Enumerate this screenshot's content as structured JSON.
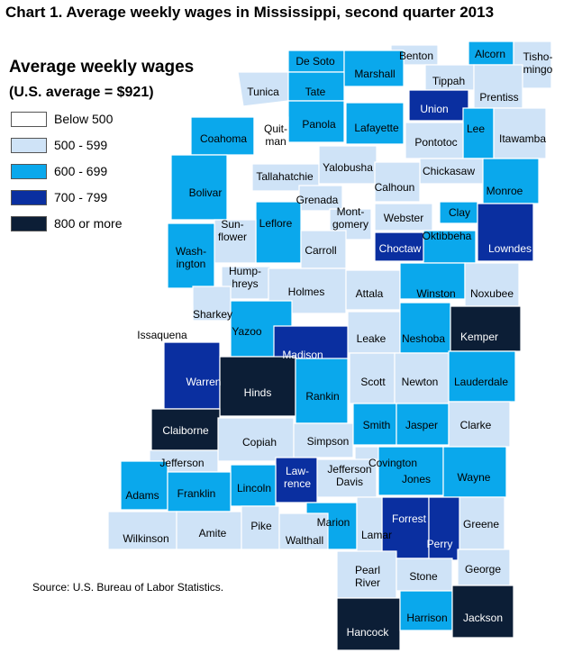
{
  "title": "Chart 1. Average weekly wages in Mississippi, second quarter 2013",
  "legend": {
    "title": "Average weekly wages",
    "subtitle": "(U.S. average = $921)",
    "items": [
      {
        "label": "Below 500",
        "color": "#ffffff"
      },
      {
        "label": "500 - 599",
        "color": "#cfe3f7"
      },
      {
        "label": "600 - 699",
        "color": "#0aa8ec"
      },
      {
        "label": "700 - 799",
        "color": "#0a2fa0"
      },
      {
        "label": "800 or more",
        "color": "#0c1e36"
      }
    ]
  },
  "source": "Source: U.S. Bureau of Labor Statistics.",
  "counties": [
    {
      "name": "De Soto",
      "category": 2
    },
    {
      "name": "Benton",
      "category": 1
    },
    {
      "name": "Alcorn",
      "category": 2
    },
    {
      "name": "Tisho-\nmingo",
      "category": 1
    },
    {
      "name": "Marshall",
      "category": 2
    },
    {
      "name": "Tippah",
      "category": 1
    },
    {
      "name": "Tunica",
      "category": 1
    },
    {
      "name": "Tate",
      "category": 2
    },
    {
      "name": "Prentiss",
      "category": 1
    },
    {
      "name": "Union",
      "category": 3
    },
    {
      "name": "Panola",
      "category": 2
    },
    {
      "name": "Lafayette",
      "category": 2
    },
    {
      "name": "Lee",
      "category": 2
    },
    {
      "name": "Itawamba",
      "category": 1
    },
    {
      "name": "Coahoma",
      "category": 2
    },
    {
      "name": "Quit-\nman",
      "category": 0
    },
    {
      "name": "Pontotoc",
      "category": 1
    },
    {
      "name": "Tallahatchie",
      "category": 1
    },
    {
      "name": "Yalobusha",
      "category": 1
    },
    {
      "name": "Chickasaw",
      "category": 1
    },
    {
      "name": "Bolivar",
      "category": 2
    },
    {
      "name": "Calhoun",
      "category": 1
    },
    {
      "name": "Monroe",
      "category": 2
    },
    {
      "name": "Grenada",
      "category": 1
    },
    {
      "name": "Clay",
      "category": 2
    },
    {
      "name": "Leflore",
      "category": 2
    },
    {
      "name": "Mont-\ngomery",
      "category": 1
    },
    {
      "name": "Webster",
      "category": 1
    },
    {
      "name": "Sun-\nflower",
      "category": 1
    },
    {
      "name": "Oktibbeha",
      "category": 2
    },
    {
      "name": "Carroll",
      "category": 1
    },
    {
      "name": "Choctaw",
      "category": 3
    },
    {
      "name": "Lowndes",
      "category": 3
    },
    {
      "name": "Wash-\nington",
      "category": 2
    },
    {
      "name": "Hump-\nhreys",
      "category": 1
    },
    {
      "name": "Holmes",
      "category": 1
    },
    {
      "name": "Attala",
      "category": 1
    },
    {
      "name": "Winston",
      "category": 2
    },
    {
      "name": "Noxubee",
      "category": 1
    },
    {
      "name": "Sharkey",
      "category": 1
    },
    {
      "name": "Issaquena",
      "category": 0
    },
    {
      "name": "Yazoo",
      "category": 2
    },
    {
      "name": "Leake",
      "category": 1
    },
    {
      "name": "Neshoba",
      "category": 2
    },
    {
      "name": "Kemper",
      "category": 4
    },
    {
      "name": "Madison",
      "category": 3
    },
    {
      "name": "Warren",
      "category": 3
    },
    {
      "name": "Hinds",
      "category": 4
    },
    {
      "name": "Rankin",
      "category": 2
    },
    {
      "name": "Scott",
      "category": 1
    },
    {
      "name": "Newton",
      "category": 1
    },
    {
      "name": "Lauderdale",
      "category": 2
    },
    {
      "name": "Claiborne",
      "category": 4
    },
    {
      "name": "Copiah",
      "category": 1
    },
    {
      "name": "Simpson",
      "category": 1
    },
    {
      "name": "Smith",
      "category": 2
    },
    {
      "name": "Jasper",
      "category": 2
    },
    {
      "name": "Clarke",
      "category": 1
    },
    {
      "name": "Jefferson",
      "category": 1
    },
    {
      "name": "Covington",
      "category": 1
    },
    {
      "name": "Jefferson\nDavis",
      "category": 1
    },
    {
      "name": "Law-\nrence",
      "category": 3
    },
    {
      "name": "Lincoln",
      "category": 2
    },
    {
      "name": "Jones",
      "category": 2
    },
    {
      "name": "Wayne",
      "category": 2
    },
    {
      "name": "Adams",
      "category": 2
    },
    {
      "name": "Franklin",
      "category": 2
    },
    {
      "name": "Forrest",
      "category": 3
    },
    {
      "name": "Marion",
      "category": 2
    },
    {
      "name": "Greene",
      "category": 1
    },
    {
      "name": "Wilkinson",
      "category": 1
    },
    {
      "name": "Amite",
      "category": 1
    },
    {
      "name": "Pike",
      "category": 1
    },
    {
      "name": "Walthall",
      "category": 1
    },
    {
      "name": "Lamar",
      "category": 1
    },
    {
      "name": "Perry",
      "category": 3
    },
    {
      "name": "George",
      "category": 1
    },
    {
      "name": "Pearl\nRiver",
      "category": 1
    },
    {
      "name": "Stone",
      "category": 1
    },
    {
      "name": "Hancock",
      "category": 4
    },
    {
      "name": "Harrison",
      "category": 2
    },
    {
      "name": "Jackson",
      "category": 4
    }
  ]
}
